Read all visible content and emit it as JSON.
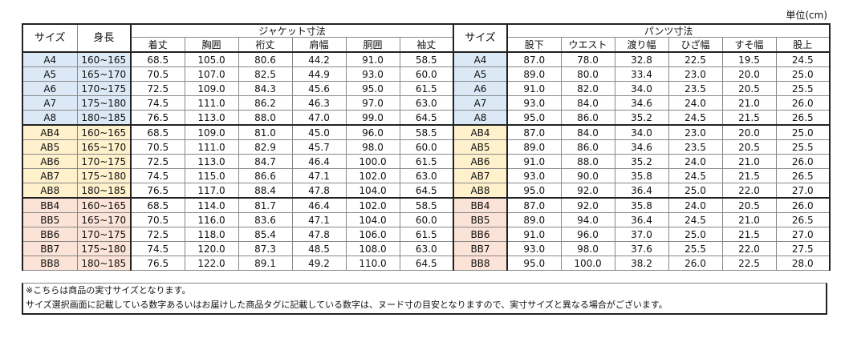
{
  "unit_label": "単位(cm)",
  "header": {
    "size": "サイズ",
    "height": "身長",
    "jacket_group": "ジャケット寸法",
    "pants_group": "パンツ寸法",
    "jacket_cols": [
      "着丈",
      "胸囲",
      "裄丈",
      "肩幅",
      "胴囲",
      "袖丈"
    ],
    "pants_size": "サイズ",
    "pants_cols": [
      "股下",
      "ウエスト",
      "渡り幅",
      "ひざ幅",
      "すそ幅",
      "股上"
    ]
  },
  "groups": [
    {
      "name": "A",
      "color": "#dbe9f6",
      "rows": [
        {
          "size": "A4",
          "height": "160~165",
          "jacket": [
            "68.5",
            "105.0",
            "80.6",
            "44.2",
            "91.0",
            "58.5"
          ],
          "pants": [
            "87.0",
            "78.0",
            "32.8",
            "22.5",
            "19.5",
            "24.5"
          ]
        },
        {
          "size": "A5",
          "height": "165~170",
          "jacket": [
            "70.5",
            "107.0",
            "82.5",
            "44.9",
            "93.0",
            "60.0"
          ],
          "pants": [
            "89.0",
            "80.0",
            "33.4",
            "23.0",
            "20.0",
            "25.0"
          ]
        },
        {
          "size": "A6",
          "height": "170~175",
          "jacket": [
            "72.5",
            "109.0",
            "84.3",
            "45.6",
            "95.0",
            "61.5"
          ],
          "pants": [
            "91.0",
            "82.0",
            "34.0",
            "23.5",
            "20.5",
            "25.5"
          ]
        },
        {
          "size": "A7",
          "height": "175~180",
          "jacket": [
            "74.5",
            "111.0",
            "86.2",
            "46.3",
            "97.0",
            "63.0"
          ],
          "pants": [
            "93.0",
            "84.0",
            "34.6",
            "24.0",
            "21.0",
            "26.0"
          ]
        },
        {
          "size": "A8",
          "height": "180~185",
          "jacket": [
            "76.5",
            "113.0",
            "88.0",
            "47.0",
            "99.0",
            "64.5"
          ],
          "pants": [
            "95.0",
            "86.0",
            "35.2",
            "24.5",
            "21.5",
            "26.5"
          ]
        }
      ]
    },
    {
      "name": "AB",
      "color": "#fff1cc",
      "rows": [
        {
          "size": "AB4",
          "height": "160~165",
          "jacket": [
            "68.5",
            "109.0",
            "81.0",
            "45.0",
            "96.0",
            "58.5"
          ],
          "pants": [
            "87.0",
            "84.0",
            "34.0",
            "23.0",
            "20.0",
            "25.0"
          ]
        },
        {
          "size": "AB5",
          "height": "165~170",
          "jacket": [
            "70.5",
            "111.0",
            "82.9",
            "45.7",
            "98.0",
            "60.0"
          ],
          "pants": [
            "89.0",
            "86.0",
            "34.6",
            "23.5",
            "20.5",
            "25.5"
          ]
        },
        {
          "size": "AB6",
          "height": "170~175",
          "jacket": [
            "72.5",
            "113.0",
            "84.7",
            "46.4",
            "100.0",
            "61.5"
          ],
          "pants": [
            "91.0",
            "88.0",
            "35.2",
            "24.0",
            "21.0",
            "26.0"
          ]
        },
        {
          "size": "AB7",
          "height": "175~180",
          "jacket": [
            "74.5",
            "115.0",
            "86.6",
            "47.1",
            "102.0",
            "63.0"
          ],
          "pants": [
            "93.0",
            "90.0",
            "35.8",
            "24.5",
            "21.5",
            "26.5"
          ]
        },
        {
          "size": "AB8",
          "height": "180~185",
          "jacket": [
            "76.5",
            "117.0",
            "88.4",
            "47.8",
            "104.0",
            "64.5"
          ],
          "pants": [
            "95.0",
            "92.0",
            "36.4",
            "25.0",
            "22.0",
            "27.0"
          ]
        }
      ]
    },
    {
      "name": "BB",
      "color": "#fbe3d7",
      "rows": [
        {
          "size": "BB4",
          "height": "160~165",
          "jacket": [
            "68.5",
            "114.0",
            "81.7",
            "46.4",
            "102.0",
            "58.5"
          ],
          "pants": [
            "87.0",
            "92.0",
            "35.8",
            "24.0",
            "20.5",
            "26.0"
          ]
        },
        {
          "size": "BB5",
          "height": "165~170",
          "jacket": [
            "70.5",
            "116.0",
            "83.6",
            "47.1",
            "104.0",
            "60.0"
          ],
          "pants": [
            "89.0",
            "94.0",
            "36.4",
            "24.5",
            "21.0",
            "26.5"
          ]
        },
        {
          "size": "BB6",
          "height": "170~175",
          "jacket": [
            "72.5",
            "118.0",
            "85.4",
            "47.8",
            "106.0",
            "61.5"
          ],
          "pants": [
            "91.0",
            "96.0",
            "37.0",
            "25.0",
            "21.5",
            "27.0"
          ]
        },
        {
          "size": "BB7",
          "height": "175~180",
          "jacket": [
            "74.5",
            "120.0",
            "87.3",
            "48.5",
            "108.0",
            "63.0"
          ],
          "pants": [
            "93.0",
            "98.0",
            "37.6",
            "25.5",
            "22.0",
            "27.5"
          ]
        },
        {
          "size": "BB8",
          "height": "180~185",
          "jacket": [
            "76.5",
            "122.0",
            "89.1",
            "49.2",
            "110.0",
            "64.5"
          ],
          "pants": [
            "95.0",
            "100.0",
            "38.2",
            "26.0",
            "22.5",
            "28.0"
          ]
        }
      ]
    }
  ],
  "notes": [
    "※こちらは商品の実寸サイズとなります。",
    "サイズ選択画面に記載している数字あるいはお届けした商品タグに記載している数字は、ヌード寸の目安となりますので、実寸サイズと異なる場合がございます。"
  ]
}
